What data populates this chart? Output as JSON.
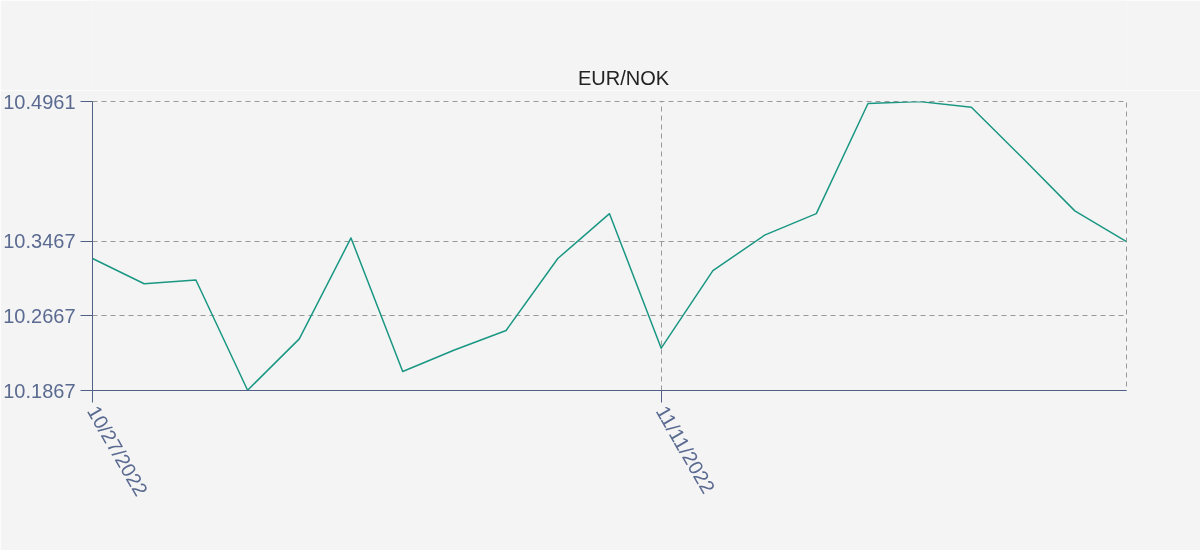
{
  "chart_data": {
    "type": "line",
    "legend": "top",
    "categories": [
      "10/27/2022",
      null,
      null,
      null,
      null,
      null,
      null,
      null,
      null,
      null,
      null,
      "11/11/2022",
      null,
      null,
      null,
      null,
      null,
      null,
      null,
      null,
      null
    ],
    "series": [
      {
        "name": "EUR/NOK",
        "color": "#1a9783",
        "values": [
          10.328,
          10.301,
          10.305,
          10.187,
          10.242,
          10.35,
          10.207,
          10.23,
          10.251,
          10.328,
          10.376,
          10.232,
          10.315,
          10.353,
          10.376,
          10.494,
          10.496,
          10.49,
          10.435,
          10.379,
          10.346
        ]
      }
    ],
    "ylim": [
      10.1867,
      10.4961
    ],
    "yticks": [
      10.1867,
      10.2667,
      10.3467,
      10.4961
    ],
    "grid": true,
    "marker": "none",
    "line_style": "solid"
  }
}
